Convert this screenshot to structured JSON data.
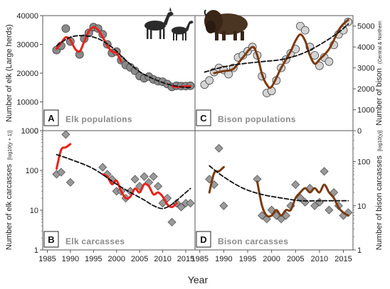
{
  "chart_data": [
    {
      "id": "A",
      "type": "line",
      "title": "Elk populations",
      "panel_letter": "A",
      "ylabel": "Number of elk (Large herds)",
      "ylim": [
        0,
        40000
      ],
      "yscale": "linear",
      "yticks": [
        0,
        10000,
        20000,
        30000,
        40000
      ],
      "xlim": [
        1984,
        2017
      ],
      "points": {
        "x": [
          1987,
          1988,
          1989,
          1990,
          1992,
          1993,
          1994,
          1995,
          1996,
          1997,
          1998,
          1999,
          2000,
          2001,
          2002,
          2003,
          2004,
          2005,
          2006,
          2007,
          2008,
          2009,
          2010,
          2011,
          2012,
          2013,
          2014,
          2015,
          2016
        ],
        "y": [
          28000,
          29500,
          35500,
          31000,
          26500,
          32000,
          34000,
          36000,
          35500,
          33500,
          30000,
          27000,
          27500,
          24500,
          22800,
          22000,
          20800,
          19000,
          18200,
          18800,
          17800,
          17200,
          17000,
          16200,
          15200,
          15600,
          15500,
          15500,
          15600
        ]
      },
      "series": [
        {
          "name": "Fitted trend (red)",
          "color": "#e8221b",
          "segments": [
            {
              "x": [
                1987,
                1988,
                1989,
                1990,
                1991,
                1992,
                1993,
                1994,
                1995,
                1996,
                1997,
                1998,
                1999,
                2000,
                2001
              ],
              "y": [
                28500,
                30500,
                32500,
                31500,
                28500,
                27500,
                31000,
                34500,
                36000,
                35000,
                32500,
                29500,
                27500,
                27000,
                24000
              ]
            },
            {
              "x": [
                2012,
                2013,
                2014,
                2015,
                2016
              ],
              "y": [
                15500,
                15200,
                15300,
                15400,
                15500
              ]
            }
          ]
        },
        {
          "name": "Smoothed trend (dashed)",
          "color": "#111111",
          "x": [
            1987,
            1990,
            1993,
            1996,
            1999,
            2002,
            2005,
            2008,
            2011,
            2014,
            2016
          ],
          "y": [
            29500,
            32500,
            33000,
            32000,
            29000,
            24500,
            20500,
            18000,
            16200,
            15200,
            15000
          ]
        }
      ]
    },
    {
      "id": "C",
      "type": "line",
      "title": "Bison populations",
      "panel_letter": "C",
      "ylabel": "Number of bison",
      "ylabel_sub": "(Central & Northern",
      "ylim": [
        0,
        5500
      ],
      "yscale": "linear",
      "yticks": [
        0,
        1000,
        2000,
        3000,
        4000,
        5000
      ],
      "xlim": [
        1984,
        2017
      ],
      "points": {
        "x": [
          1986,
          1987,
          1988,
          1989,
          1990,
          1991,
          1992,
          1993,
          1994,
          1995,
          1996,
          1997,
          1998,
          1999,
          2000,
          2001,
          2002,
          2003,
          2004,
          2005,
          2006,
          2007,
          2008,
          2009,
          2010,
          2011,
          2012,
          2013,
          2014,
          2015,
          2016
        ],
        "y": [
          2200,
          2400,
          2800,
          3000,
          2900,
          2700,
          3000,
          3500,
          3600,
          3800,
          4000,
          3600,
          2600,
          1800,
          1900,
          2400,
          3000,
          3400,
          3700,
          3900,
          5000,
          4800,
          4000,
          3600,
          3100,
          3500,
          3300,
          4100,
          4600,
          4800,
          5200
        ]
      },
      "series": [
        {
          "name": "Fitted trend (brown)",
          "color": "#7a3a10",
          "x": [
            1988,
            1990,
            1992,
            1994,
            1996,
            1997,
            1998,
            1999,
            2000,
            2002,
            2004,
            2005,
            2006,
            2007,
            2008,
            2009,
            2010,
            2012,
            2014,
            2015,
            2016
          ],
          "y": [
            2750,
            2850,
            2950,
            3500,
            4000,
            3600,
            2700,
            2200,
            2100,
            3000,
            3800,
            4300,
            4600,
            4300,
            3600,
            3200,
            3400,
            3900,
            4800,
            5100,
            5300
          ]
        },
        {
          "name": "Smoothed trend (dashed)",
          "color": "#111111",
          "x": [
            1986,
            1990,
            1994,
            1998,
            2002,
            2006,
            2010,
            2014,
            2016
          ],
          "y": [
            2800,
            3050,
            3200,
            3300,
            3400,
            3650,
            4100,
            4700,
            5100
          ]
        }
      ]
    },
    {
      "id": "B",
      "type": "line",
      "title": "Elk carcasses",
      "panel_letter": "B",
      "ylabel": "Number of elk carcasses",
      "ylabel_sub": "[log10(y + 1)]",
      "ylim": [
        1,
        1000
      ],
      "yscale": "log",
      "yticks": [
        1,
        10,
        100,
        1000
      ],
      "xticks": [
        1985,
        1990,
        1995,
        2000,
        2005,
        2010,
        2015
      ],
      "xlim": [
        1984,
        2017
      ],
      "points": {
        "x": [
          1987,
          1988,
          1989,
          1990,
          1997,
          1998,
          1999,
          2000,
          2001,
          2002,
          2003,
          2004,
          2005,
          2006,
          2007,
          2008,
          2009,
          2010,
          2011,
          2012,
          2013,
          2014,
          2015,
          2016
        ],
        "y": [
          80,
          90,
          800,
          50,
          120,
          80,
          60,
          30,
          30,
          20,
          30,
          60,
          40,
          70,
          50,
          70,
          40,
          15,
          20,
          5,
          15,
          12,
          15,
          15
        ]
      },
      "series": [
        {
          "name": "Fitted trend (red)",
          "color": "#e8221b",
          "segments": [
            {
              "x": [
                1987,
                1988,
                1989,
                1990
              ],
              "y": [
                110,
                330,
                380,
                460
              ]
            },
            {
              "x": [
                1997,
                1998,
                1999,
                2000,
                2001,
                2002,
                2003,
                2004,
                2005,
                2006,
                2007,
                2008,
                2009,
                2010,
                2011,
                2012,
                2013
              ],
              "y": [
                80,
                70,
                45,
                55,
                30,
                20,
                22,
                35,
                28,
                45,
                40,
                25,
                28,
                22,
                14,
                12,
                15
              ]
            }
          ]
        },
        {
          "name": "Smoothed trend (dashed)",
          "color": "#111111",
          "x": [
            1987,
            1990,
            1995,
            2000,
            2003,
            2006,
            2008,
            2010,
            2012,
            2014,
            2016
          ],
          "y": [
            250,
            190,
            110,
            45,
            28,
            18,
            13,
            11,
            14,
            22,
            35
          ]
        }
      ]
    },
    {
      "id": "D",
      "type": "line",
      "title": "Bison carcasses",
      "panel_letter": "D",
      "ylabel": "Number of bison carcasses",
      "ylabel_sub": "[log10(y)]",
      "ylim": [
        1,
        500
      ],
      "yscale": "log",
      "yticks": [
        1,
        10,
        100
      ],
      "xticks": [
        1985,
        1990,
        1995,
        2000,
        2005,
        2010,
        2015
      ],
      "xlim": [
        1984,
        2017
      ],
      "points": {
        "x": [
          1987,
          1988,
          1989,
          1990,
          1997,
          1998,
          1999,
          2000,
          2001,
          2002,
          2003,
          2004,
          2005,
          2006,
          2007,
          2008,
          2009,
          2010,
          2011,
          2012,
          2013,
          2014,
          2015,
          2016
        ],
        "y": [
          40,
          30,
          200,
          10,
          40,
          6,
          5,
          8,
          6,
          5,
          6,
          10,
          30,
          15,
          12,
          25,
          10,
          12,
          60,
          8,
          20,
          10,
          6,
          7
        ]
      },
      "series": [
        {
          "name": "Fitted trend (brown)",
          "color": "#7a3a10",
          "segments": [
            {
              "x": [
                1987,
                1988,
                1989,
                1990
              ],
              "y": [
                20,
                55,
                60,
                75
              ]
            },
            {
              "x": [
                1997,
                1998,
                1999,
                2000,
                2001,
                2002,
                2003,
                2004,
                2005,
                2006,
                2007,
                2008,
                2009,
                2010,
                2011,
                2012,
                2013,
                2014,
                2015,
                2016
              ],
              "y": [
                35,
                10,
                6,
                6,
                8,
                6,
                8,
                8,
                15,
                20,
                25,
                20,
                25,
                20,
                30,
                20,
                15,
                9,
                7,
                6
              ]
            }
          ]
        },
        {
          "name": "Smoothed trend (dashed)",
          "color": "#111111",
          "x": [
            1987,
            1990,
            1994,
            1998,
            2002,
            2006,
            2010,
            2014,
            2016
          ],
          "y": [
            80,
            45,
            25,
            18,
            15,
            13,
            13,
            13,
            13
          ]
        }
      ]
    }
  ],
  "xlabel": "Year",
  "icons": [
    "elk-icon",
    "bison-icon"
  ]
}
